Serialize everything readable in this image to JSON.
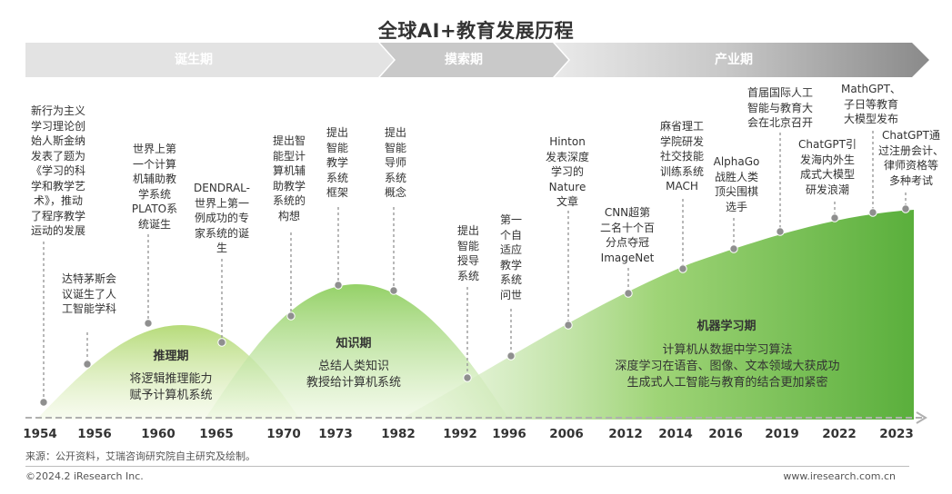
{
  "title": "全球AI+教育发展历程",
  "phases": [
    "诞生期",
    "摸索期",
    "产业期"
  ],
  "years": [
    "1954",
    "1956",
    "1960",
    "1965",
    "1970",
    "1973",
    "1982",
    "1992",
    "1996",
    "2006",
    "2012",
    "2014",
    "2016",
    "2019",
    "2022",
    "2023"
  ],
  "events": [
    "新行为主义\n学习理论创\n始人斯金纳\n发表了题为\n《学习的科\n学和教学艺\n术》，推动\n了程序教学\n运动的发展",
    "达特茅斯会\n议诞生了人\n工智能学科",
    "世界上第\n一个计算\n机辅助教\n学系统\nPLATO系\n统诞生",
    "DENDRAL-\n世界上第一\n例成功的专\n家系统的诞\n生",
    "提出智\n能型计\n算机辅\n助教学\n系统的\n构想",
    "提出\n智能\n教学\n系统\n框架",
    "提出\n智能\n导师\n系统\n概念",
    "提出\n智能\n授导\n系统",
    "第一\n个自\n适应\n教学\n系统\n问世",
    "Hinton\n发表深度\n学习的\nNature\n文章",
    "CNN超第\n二名十个百\n分点夺冠\nImageNet",
    "麻省理工\n学院研发\n社交技能\n训练系统\nMACH",
    "AlphaGo\n战胜人类\n顶尖围棋\n选手",
    "首届国际人工\n智能与教育大\n会在北京召开",
    "ChatGPT引\n发海内外生\n成式大模型\n研发浪潮",
    "MathGPT、\n子日等教育\n大模型发布",
    "ChatGPT通\n过注册会计、\n律师资格等\n多种考试"
  ],
  "eras": [
    {
      "name": "推理期",
      "desc": "将逻辑推理能力\n赋予计算机系统"
    },
    {
      "name": "知识期",
      "desc": "总结人类知识\n教授给计算机系统"
    },
    {
      "name": "机器学习期",
      "desc": "计算机从数据中学习算法\n深度学习在语音、图像、文本领域大获成功\n生成式人工智能与教育的结合更加紧密"
    }
  ],
  "source": "来源：公开资料，艾瑞咨询研究院自主研究及绘制。",
  "copyright": "©2024.2 iResearch Inc.",
  "website": "www.iresearch.com.cn",
  "colors": {
    "phase_arrow_light": "#e6e6e6",
    "phase_arrow_dark": "#8a8a8a",
    "curve_green_light": "#d9ebb0",
    "curve_green_mid": "#8fcf60",
    "curve_green_dark": "#55ad3c",
    "marker": "#8f8f8f",
    "axis": "#b0b0b0"
  }
}
